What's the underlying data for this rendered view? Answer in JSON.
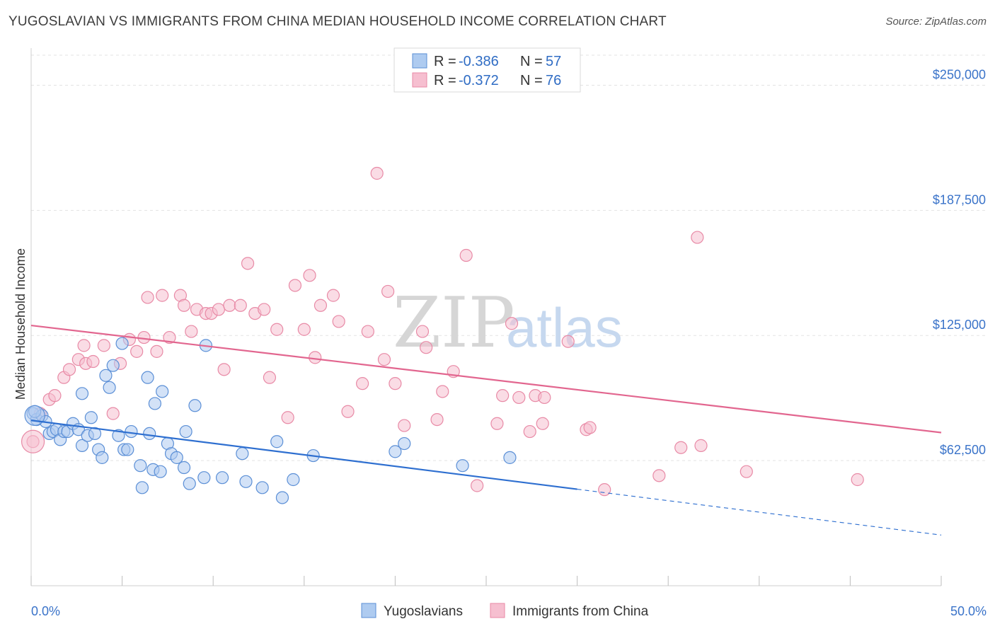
{
  "header": {
    "title": "YUGOSLAVIAN VS IMMIGRANTS FROM CHINA MEDIAN HOUSEHOLD INCOME CORRELATION CHART",
    "source": "Source: ZipAtlas.com"
  },
  "watermark": {
    "zip": "ZIP",
    "atlas": "atlas"
  },
  "legend": {
    "rows": [
      {
        "r_label": "R = ",
        "r_value": "-0.386",
        "n_label": "N = ",
        "n_value": "57"
      },
      {
        "r_label": "R = ",
        "r_value": "-0.372",
        "n_label": "N = ",
        "n_value": "76"
      }
    ]
  },
  "colors": {
    "blue_fill": "#aecbf0",
    "blue_stroke": "#5b8fd6",
    "blue_line": "#2e6fd0",
    "pink_fill": "#f6bfd0",
    "pink_stroke": "#e88aa6",
    "pink_line": "#e2668f",
    "grid": "#e3e3e3",
    "tick_text": "#3a73c9"
  },
  "chart_data": {
    "type": "scatter",
    "title": "YUGOSLAVIAN VS IMMIGRANTS FROM CHINA MEDIAN HOUSEHOLD INCOME CORRELATION CHART",
    "xlabel": "",
    "ylabel": "Median Household Income",
    "xlim": [
      0,
      50
    ],
    "ylim": [
      0,
      265000
    ],
    "x_tick_labels": [
      "0.0%",
      "50.0%"
    ],
    "y_ticks": [
      {
        "value": 62500,
        "label": "$62,500"
      },
      {
        "value": 125000,
        "label": "$125,000"
      },
      {
        "value": 187500,
        "label": "$187,500"
      },
      {
        "value": 250000,
        "label": "$250,000"
      }
    ],
    "grid": true,
    "legend_position": "top-center",
    "series": [
      {
        "name": "Yugoslavians",
        "color": "#5b8fd6",
        "trend": {
          "x0": 0,
          "y0": 82600,
          "x1": 30,
          "y1": 48200,
          "dashed_to_x": 50,
          "dashed_to_y": 25300
        },
        "points": [
          {
            "x": 0.1,
            "y": 86000
          },
          {
            "x": 0.3,
            "y": 83000
          },
          {
            "x": 0.6,
            "y": 85000
          },
          {
            "x": 0.8,
            "y": 82000
          },
          {
            "x": 1.0,
            "y": 76000
          },
          {
            "x": 1.2,
            "y": 77000
          },
          {
            "x": 1.4,
            "y": 78000
          },
          {
            "x": 1.6,
            "y": 73000
          },
          {
            "x": 1.8,
            "y": 77000
          },
          {
            "x": 2.0,
            "y": 77000
          },
          {
            "x": 2.3,
            "y": 81000
          },
          {
            "x": 2.6,
            "y": 78000
          },
          {
            "x": 2.8,
            "y": 70000
          },
          {
            "x": 2.8,
            "y": 96000
          },
          {
            "x": 3.1,
            "y": 75000
          },
          {
            "x": 3.3,
            "y": 84000
          },
          {
            "x": 3.5,
            "y": 76000
          },
          {
            "x": 3.7,
            "y": 68000
          },
          {
            "x": 3.9,
            "y": 64000
          },
          {
            "x": 4.1,
            "y": 105000
          },
          {
            "x": 4.3,
            "y": 99000
          },
          {
            "x": 4.5,
            "y": 110000
          },
          {
            "x": 4.8,
            "y": 75000
          },
          {
            "x": 5.0,
            "y": 121000
          },
          {
            "x": 5.1,
            "y": 68000
          },
          {
            "x": 5.3,
            "y": 68000
          },
          {
            "x": 5.5,
            "y": 77000
          },
          {
            "x": 6.0,
            "y": 60000
          },
          {
            "x": 6.1,
            "y": 49000
          },
          {
            "x": 6.4,
            "y": 104000
          },
          {
            "x": 6.5,
            "y": 76000
          },
          {
            "x": 6.7,
            "y": 58000
          },
          {
            "x": 6.8,
            "y": 91000
          },
          {
            "x": 7.1,
            "y": 57000
          },
          {
            "x": 7.2,
            "y": 97000
          },
          {
            "x": 7.5,
            "y": 71000
          },
          {
            "x": 7.7,
            "y": 66000
          },
          {
            "x": 8.0,
            "y": 64000
          },
          {
            "x": 8.4,
            "y": 59000
          },
          {
            "x": 8.5,
            "y": 77000
          },
          {
            "x": 8.7,
            "y": 51000
          },
          {
            "x": 9.0,
            "y": 90000
          },
          {
            "x": 9.5,
            "y": 54000
          },
          {
            "x": 9.6,
            "y": 120000
          },
          {
            "x": 10.5,
            "y": 54000
          },
          {
            "x": 11.6,
            "y": 66000
          },
          {
            "x": 11.8,
            "y": 52000
          },
          {
            "x": 12.7,
            "y": 49000
          },
          {
            "x": 13.5,
            "y": 72000
          },
          {
            "x": 13.8,
            "y": 44000
          },
          {
            "x": 14.4,
            "y": 53000
          },
          {
            "x": 15.5,
            "y": 65000
          },
          {
            "x": 20.0,
            "y": 67000
          },
          {
            "x": 20.5,
            "y": 71000
          },
          {
            "x": 23.7,
            "y": 60000
          },
          {
            "x": 26.3,
            "y": 64000
          },
          {
            "x": 0.2,
            "y": 87000
          }
        ]
      },
      {
        "name": "Immigrants from China",
        "color": "#e88aa6",
        "trend": {
          "x0": 0,
          "y0": 130000,
          "x1": 50,
          "y1": 76500
        },
        "points": [
          {
            "x": 0.1,
            "y": 72000
          },
          {
            "x": 0.5,
            "y": 86000
          },
          {
            "x": 1.0,
            "y": 93000
          },
          {
            "x": 1.3,
            "y": 95000
          },
          {
            "x": 1.8,
            "y": 104000
          },
          {
            "x": 2.1,
            "y": 108000
          },
          {
            "x": 2.6,
            "y": 113000
          },
          {
            "x": 2.9,
            "y": 120000
          },
          {
            "x": 3.0,
            "y": 111000
          },
          {
            "x": 3.4,
            "y": 112000
          },
          {
            "x": 4.0,
            "y": 120000
          },
          {
            "x": 4.5,
            "y": 86000
          },
          {
            "x": 4.9,
            "y": 111000
          },
          {
            "x": 5.4,
            "y": 123000
          },
          {
            "x": 5.8,
            "y": 117000
          },
          {
            "x": 6.2,
            "y": 124000
          },
          {
            "x": 6.4,
            "y": 144000
          },
          {
            "x": 6.9,
            "y": 117000
          },
          {
            "x": 7.2,
            "y": 145000
          },
          {
            "x": 7.6,
            "y": 124000
          },
          {
            "x": 8.2,
            "y": 145000
          },
          {
            "x": 8.4,
            "y": 140000
          },
          {
            "x": 8.8,
            "y": 127000
          },
          {
            "x": 9.1,
            "y": 138000
          },
          {
            "x": 9.6,
            "y": 136000
          },
          {
            "x": 9.9,
            "y": 136000
          },
          {
            "x": 10.3,
            "y": 138000
          },
          {
            "x": 10.6,
            "y": 108000
          },
          {
            "x": 10.9,
            "y": 140000
          },
          {
            "x": 11.5,
            "y": 140000
          },
          {
            "x": 11.9,
            "y": 161000
          },
          {
            "x": 12.3,
            "y": 136000
          },
          {
            "x": 12.8,
            "y": 138000
          },
          {
            "x": 13.1,
            "y": 104000
          },
          {
            "x": 13.5,
            "y": 128000
          },
          {
            "x": 14.1,
            "y": 84000
          },
          {
            "x": 14.5,
            "y": 150000
          },
          {
            "x": 15.0,
            "y": 128000
          },
          {
            "x": 15.3,
            "y": 155000
          },
          {
            "x": 15.6,
            "y": 114000
          },
          {
            "x": 15.9,
            "y": 140000
          },
          {
            "x": 16.6,
            "y": 145000
          },
          {
            "x": 16.9,
            "y": 132000
          },
          {
            "x": 17.4,
            "y": 87000
          },
          {
            "x": 18.2,
            "y": 101000
          },
          {
            "x": 18.5,
            "y": 127000
          },
          {
            "x": 19.0,
            "y": 206000
          },
          {
            "x": 19.4,
            "y": 113000
          },
          {
            "x": 19.6,
            "y": 147000
          },
          {
            "x": 20.0,
            "y": 101000
          },
          {
            "x": 20.5,
            "y": 80000
          },
          {
            "x": 21.5,
            "y": 127000
          },
          {
            "x": 21.7,
            "y": 119000
          },
          {
            "x": 22.3,
            "y": 83000
          },
          {
            "x": 22.6,
            "y": 97000
          },
          {
            "x": 23.2,
            "y": 107000
          },
          {
            "x": 23.9,
            "y": 165000
          },
          {
            "x": 24.5,
            "y": 50000
          },
          {
            "x": 25.6,
            "y": 81000
          },
          {
            "x": 25.9,
            "y": 95000
          },
          {
            "x": 26.4,
            "y": 131000
          },
          {
            "x": 26.8,
            "y": 94000
          },
          {
            "x": 27.4,
            "y": 77000
          },
          {
            "x": 27.7,
            "y": 95000
          },
          {
            "x": 28.1,
            "y": 81000
          },
          {
            "x": 28.2,
            "y": 94000
          },
          {
            "x": 29.5,
            "y": 122000
          },
          {
            "x": 30.5,
            "y": 78000
          },
          {
            "x": 30.7,
            "y": 79000
          },
          {
            "x": 31.5,
            "y": 48000
          },
          {
            "x": 34.5,
            "y": 55000
          },
          {
            "x": 35.7,
            "y": 69000
          },
          {
            "x": 36.6,
            "y": 174000
          },
          {
            "x": 36.8,
            "y": 70000
          },
          {
            "x": 39.3,
            "y": 57000
          },
          {
            "x": 45.4,
            "y": 53000
          }
        ]
      }
    ],
    "x_axis_legend": [
      "Yugoslavians",
      "Immigrants from China"
    ]
  }
}
